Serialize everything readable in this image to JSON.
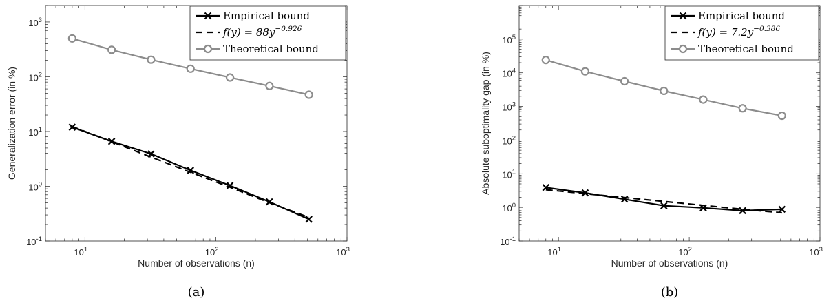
{
  "chart_data": [
    {
      "type": "line",
      "subcaption": "(a)",
      "xlabel": "Number of observations (n)",
      "ylabel": "Generalization error (in %)",
      "x_scale": "log",
      "y_scale": "log",
      "xlim": [
        5,
        1000
      ],
      "ylim": [
        0.1,
        2000
      ],
      "x_ticks": [
        {
          "value": 10,
          "base": "10",
          "exp": "1"
        },
        {
          "value": 100,
          "base": "10",
          "exp": "2"
        },
        {
          "value": 1000,
          "base": "10",
          "exp": "3"
        }
      ],
      "y_ticks": [
        {
          "value": 0.1,
          "base": "10",
          "exp": "-1"
        },
        {
          "value": 1,
          "base": "10",
          "exp": "0"
        },
        {
          "value": 10,
          "base": "10",
          "exp": "1"
        },
        {
          "value": 100,
          "base": "10",
          "exp": "2"
        },
        {
          "value": 1000,
          "base": "10",
          "exp": "3"
        }
      ],
      "legend_position": "top-right",
      "series": [
        {
          "name": "Empirical bound",
          "style": "solid-x",
          "color": "#000000",
          "x": [
            8,
            16,
            32,
            64,
            128,
            256,
            512
          ],
          "y": [
            12.0,
            6.6,
            3.9,
            1.95,
            1.03,
            0.52,
            0.25
          ]
        },
        {
          "name": "f(y) = 88y",
          "name_exp": "−0.926",
          "style": "dashed",
          "color": "#000000",
          "x": [
            8,
            16,
            32,
            64,
            128,
            256,
            512
          ],
          "y": [
            12.3,
            6.5,
            3.4,
            1.8,
            0.96,
            0.5,
            0.27
          ]
        },
        {
          "name": "Theoretical bound",
          "style": "solid-o",
          "color": "#8c8c8c",
          "x": [
            8,
            16,
            32,
            64,
            128,
            256,
            512
          ],
          "y": [
            500,
            310,
            205,
            140,
            97,
            68,
            47
          ]
        }
      ]
    },
    {
      "type": "line",
      "subcaption": "(b)",
      "xlabel": "Number of observations (n)",
      "ylabel": "Absolute suboptimality gap (in %)",
      "x_scale": "log",
      "y_scale": "log",
      "xlim": [
        5,
        1000
      ],
      "ylim": [
        0.1,
        1000000
      ],
      "x_ticks": [
        {
          "value": 10,
          "base": "10",
          "exp": "1"
        },
        {
          "value": 100,
          "base": "10",
          "exp": "2"
        },
        {
          "value": 1000,
          "base": "10",
          "exp": "3"
        }
      ],
      "y_ticks": [
        {
          "value": 0.1,
          "base": "10",
          "exp": "-1"
        },
        {
          "value": 1,
          "base": "10",
          "exp": "0"
        },
        {
          "value": 10,
          "base": "10",
          "exp": "1"
        },
        {
          "value": 100,
          "base": "10",
          "exp": "2"
        },
        {
          "value": 1000,
          "base": "10",
          "exp": "3"
        },
        {
          "value": 10000,
          "base": "10",
          "exp": "4"
        },
        {
          "value": 100000,
          "base": "10",
          "exp": "5"
        }
      ],
      "legend_position": "top-right",
      "series": [
        {
          "name": "Empirical bound",
          "style": "solid-x",
          "color": "#000000",
          "x": [
            8,
            16,
            32,
            64,
            128,
            256,
            512
          ],
          "y": [
            3.9,
            2.7,
            1.75,
            1.12,
            0.97,
            0.8,
            0.88
          ]
        },
        {
          "name": "f(y) = 7.2y",
          "name_exp": "−0.386",
          "style": "dashed",
          "color": "#000000",
          "x": [
            8,
            16,
            32,
            64,
            128,
            256,
            512
          ],
          "y": [
            3.35,
            2.56,
            1.96,
            1.5,
            1.15,
            0.88,
            0.69
          ]
        },
        {
          "name": "Theoretical bound",
          "style": "solid-o",
          "color": "#8c8c8c",
          "x": [
            8,
            16,
            32,
            64,
            128,
            256,
            512
          ],
          "y": [
            24000,
            11000,
            5600,
            2900,
            1600,
            880,
            530
          ]
        }
      ]
    }
  ]
}
